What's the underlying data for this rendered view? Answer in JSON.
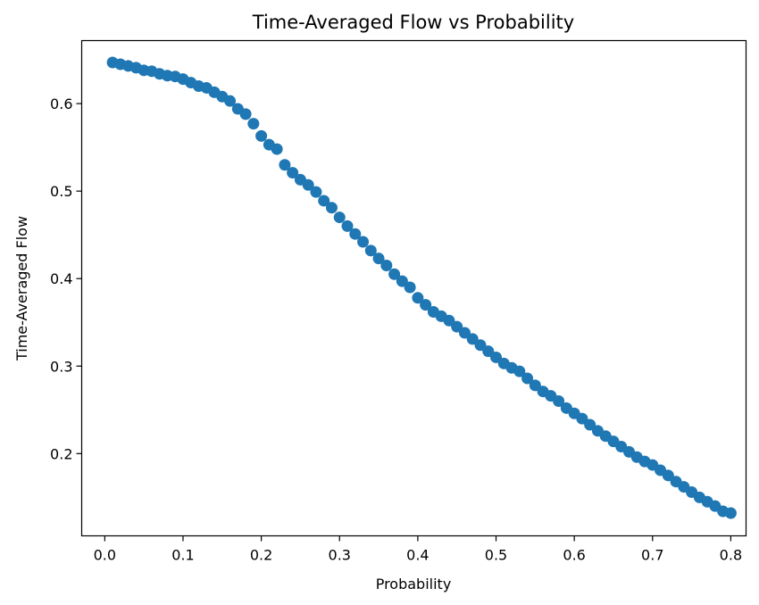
{
  "chart_data": {
    "type": "scatter",
    "title": "Time-Averaged Flow vs Probability",
    "xlabel": "Probability",
    "ylabel": "Time-Averaged Flow",
    "xlim": [
      -0.0295,
      0.8195
    ],
    "ylim": [
      0.106,
      0.672
    ],
    "xticks": [
      0.0,
      0.1,
      0.2,
      0.3,
      0.4,
      0.5,
      0.6,
      0.7,
      0.8
    ],
    "xtick_labels": [
      "0.0",
      "0.1",
      "0.2",
      "0.3",
      "0.4",
      "0.5",
      "0.6",
      "0.7",
      "0.8"
    ],
    "yticks": [
      0.2,
      0.3,
      0.4,
      0.5,
      0.6
    ],
    "ytick_labels": [
      "0.2",
      "0.3",
      "0.4",
      "0.5",
      "0.6"
    ],
    "grid": false,
    "legend": "none",
    "marker_color": "#1f77b4",
    "series": [
      {
        "x": [
          0.01,
          0.02,
          0.03,
          0.04,
          0.05,
          0.06,
          0.07,
          0.08,
          0.09,
          0.1,
          0.11,
          0.12,
          0.13,
          0.14,
          0.15,
          0.16,
          0.17,
          0.18,
          0.19,
          0.2,
          0.21,
          0.22,
          0.23,
          0.24,
          0.25,
          0.26,
          0.27,
          0.28,
          0.29,
          0.3,
          0.31,
          0.32,
          0.33,
          0.34,
          0.35,
          0.36,
          0.37,
          0.38,
          0.39,
          0.4,
          0.41,
          0.42,
          0.43,
          0.44,
          0.45,
          0.46,
          0.47,
          0.48,
          0.49,
          0.5,
          0.51,
          0.52,
          0.53,
          0.54,
          0.55,
          0.56,
          0.57,
          0.58,
          0.59,
          0.6,
          0.61,
          0.62,
          0.63,
          0.64,
          0.65,
          0.66,
          0.67,
          0.68,
          0.69,
          0.7,
          0.71,
          0.72,
          0.73,
          0.74,
          0.75,
          0.76,
          0.77,
          0.78,
          0.79,
          0.8
        ],
        "y": [
          0.647,
          0.645,
          0.643,
          0.641,
          0.638,
          0.637,
          0.634,
          0.632,
          0.631,
          0.628,
          0.624,
          0.62,
          0.618,
          0.613,
          0.608,
          0.603,
          0.594,
          0.588,
          0.577,
          0.563,
          0.553,
          0.548,
          0.53,
          0.521,
          0.513,
          0.507,
          0.499,
          0.489,
          0.481,
          0.47,
          0.46,
          0.451,
          0.442,
          0.432,
          0.423,
          0.415,
          0.405,
          0.397,
          0.39,
          0.378,
          0.37,
          0.362,
          0.357,
          0.352,
          0.345,
          0.338,
          0.331,
          0.324,
          0.317,
          0.31,
          0.303,
          0.298,
          0.294,
          0.286,
          0.278,
          0.271,
          0.266,
          0.26,
          0.252,
          0.246,
          0.24,
          0.233,
          0.226,
          0.22,
          0.214,
          0.208,
          0.202,
          0.196,
          0.191,
          0.187,
          0.181,
          0.175,
          0.168,
          0.162,
          0.156,
          0.15,
          0.145,
          0.14,
          0.134,
          0.132
        ]
      }
    ]
  }
}
